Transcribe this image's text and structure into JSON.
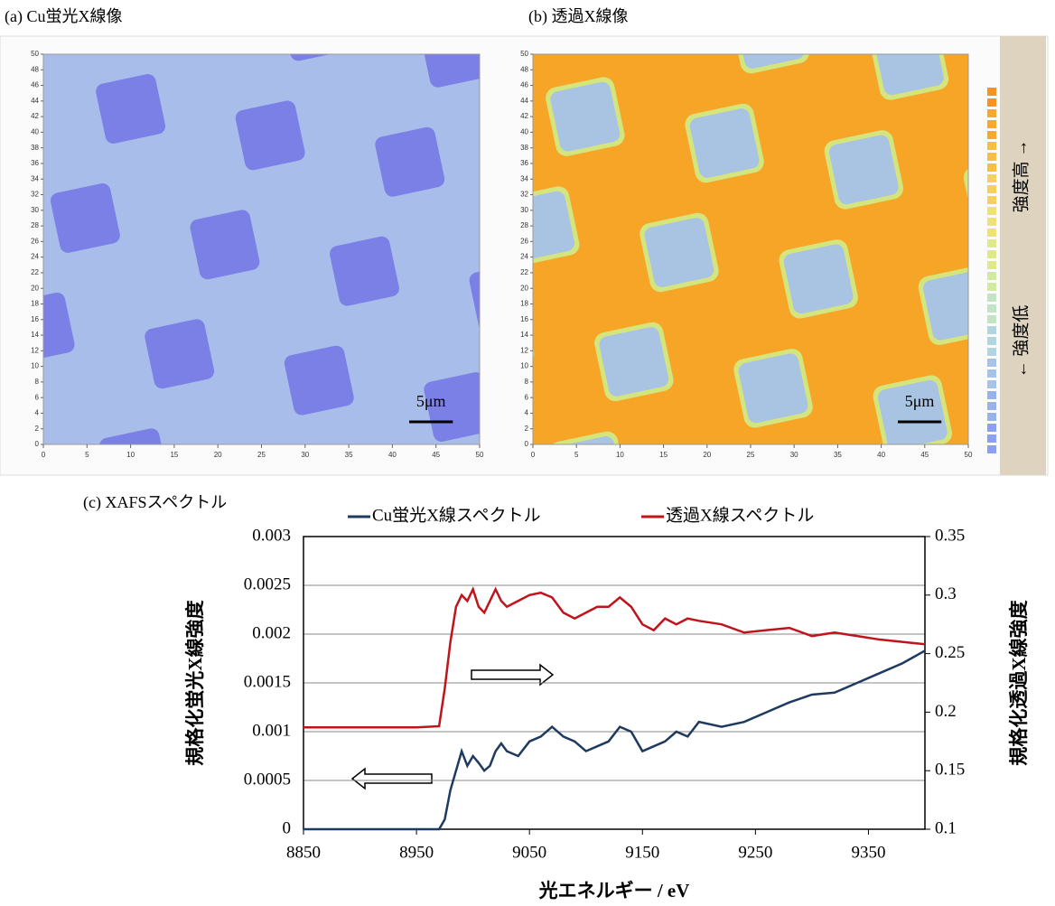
{
  "chart_data": [
    {
      "type": "image",
      "title": "(a) Cu蛍光X線像",
      "xlim": [
        0,
        50
      ],
      "ylim": [
        0,
        50
      ],
      "xticks": [
        0,
        5,
        10,
        15,
        20,
        25,
        30,
        35,
        40,
        45,
        50
      ],
      "yticks": [
        0,
        2,
        4,
        6,
        8,
        10,
        12,
        14,
        16,
        18,
        20,
        22,
        24,
        26,
        28,
        30,
        32,
        34,
        36,
        38,
        40,
        42,
        44,
        46,
        48,
        50
      ],
      "scale_bar": {
        "label": "5μm",
        "length": 5
      },
      "colors": [
        "#a9bdeb",
        "#7b80e6"
      ]
    },
    {
      "type": "image",
      "title": "(b) 透過X線像",
      "xlim": [
        0,
        50
      ],
      "ylim": [
        0,
        50
      ],
      "xticks": [
        0,
        5,
        10,
        15,
        20,
        25,
        30,
        35,
        40,
        45,
        50
      ],
      "yticks": [
        0,
        2,
        4,
        6,
        8,
        10,
        12,
        14,
        16,
        18,
        20,
        22,
        24,
        26,
        28,
        30,
        32,
        34,
        36,
        38,
        40,
        42,
        44,
        46,
        48,
        50
      ],
      "scale_bar": {
        "label": "5μm",
        "length": 5
      },
      "colors": [
        "#f6a526",
        "#a9c3e2"
      ],
      "colorbar": {
        "low": "← 強度低",
        "high": "強度高 →"
      }
    },
    {
      "type": "line",
      "title": "(c) XAFSスペクトル",
      "xlabel": "光エネルギー / eV",
      "ylabel": "規格化蛍光X線強度",
      "y2label": "規格化透過X線強度",
      "x": [
        8850,
        8900,
        8950,
        8970,
        8975,
        8980,
        8985,
        8990,
        8995,
        9000,
        9005,
        9010,
        9015,
        9020,
        9025,
        9030,
        9040,
        9050,
        9060,
        9070,
        9080,
        9090,
        9100,
        9110,
        9120,
        9130,
        9140,
        9150,
        9160,
        9170,
        9180,
        9190,
        9200,
        9220,
        9240,
        9260,
        9280,
        9300,
        9320,
        9340,
        9360,
        9380,
        9400
      ],
      "xlim": [
        8850,
        9400
      ],
      "xticks": [
        8850,
        8950,
        9050,
        9150,
        9250,
        9350
      ],
      "ylim": [
        0,
        0.003
      ],
      "yticks": [
        0,
        0.0005,
        0.001,
        0.0015,
        0.002,
        0.0025,
        0.003
      ],
      "y2lim": [
        0.1,
        0.35
      ],
      "y2ticks": [
        0.1,
        0.15,
        0.2,
        0.25,
        0.3,
        0.35
      ],
      "grid": true,
      "series": [
        {
          "name": "Cu蛍光X線スペクトル",
          "color": "#1f3a5f",
          "values": [
            0,
            0,
            0,
            0,
            0.0001,
            0.0004,
            0.0006,
            0.0008,
            0.00065,
            0.00075,
            0.00068,
            0.0006,
            0.00065,
            0.0008,
            0.00088,
            0.0008,
            0.00075,
            0.0009,
            0.00095,
            0.00105,
            0.00095,
            0.0009,
            0.0008,
            0.00085,
            0.0009,
            0.00105,
            0.001,
            0.0008,
            0.00085,
            0.0009,
            0.001,
            0.00095,
            0.0011,
            0.00105,
            0.0011,
            0.0012,
            0.0013,
            0.00138,
            0.0014,
            0.0015,
            0.0016,
            0.0017,
            0.00183
          ]
        },
        {
          "name": "透過X線スペクトル",
          "color": "#c0141c",
          "axis": "y2",
          "values": [
            0.187,
            0.187,
            0.187,
            0.188,
            0.22,
            0.26,
            0.29,
            0.3,
            0.295,
            0.305,
            0.29,
            0.285,
            0.295,
            0.305,
            0.295,
            0.29,
            0.295,
            0.3,
            0.302,
            0.298,
            0.285,
            0.28,
            0.285,
            0.29,
            0.29,
            0.298,
            0.29,
            0.275,
            0.27,
            0.28,
            0.275,
            0.28,
            0.278,
            0.275,
            0.268,
            0.27,
            0.272,
            0.265,
            0.268,
            0.265,
            0.262,
            0.26,
            0.258
          ]
        }
      ]
    }
  ]
}
